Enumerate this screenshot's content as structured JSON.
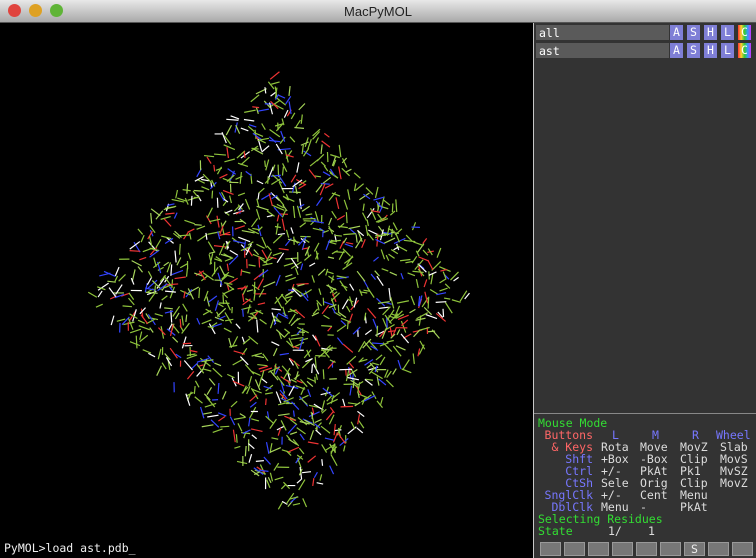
{
  "window": {
    "title": "MacPyMOL"
  },
  "objects": [
    {
      "name": "all",
      "buttons": [
        "A",
        "S",
        "H",
        "L",
        "C"
      ]
    },
    {
      "name": "ast",
      "buttons": [
        "A",
        "S",
        "H",
        "L",
        "C"
      ]
    }
  ],
  "mouse_mode": {
    "title": "Mouse Mode",
    "header": [
      "Buttons",
      "L",
      "M",
      "R",
      "Wheel"
    ],
    "rows": [
      [
        "& Keys",
        "Rota",
        "Move",
        "MovZ",
        "Slab"
      ],
      [
        "Shft",
        "+Box",
        "-Box",
        "Clip",
        "MovS"
      ],
      [
        "Ctrl",
        "+/-",
        "PkAt",
        "Pk1",
        "MvSZ"
      ],
      [
        "CtSh",
        "Sele",
        "Orig",
        "Clip",
        "MovZ"
      ],
      [
        "SnglClk",
        "+/-",
        "Cent",
        "Menu"
      ],
      [
        "DblClk",
        "Menu",
        "-",
        "PkAt"
      ]
    ],
    "selecting": "Selecting Residues",
    "state": {
      "label": "State",
      "current": "1/",
      "total": "1"
    }
  },
  "playback": {
    "sequence_button": "S"
  },
  "command_line": "PyMOL>load ast.pdb_"
}
